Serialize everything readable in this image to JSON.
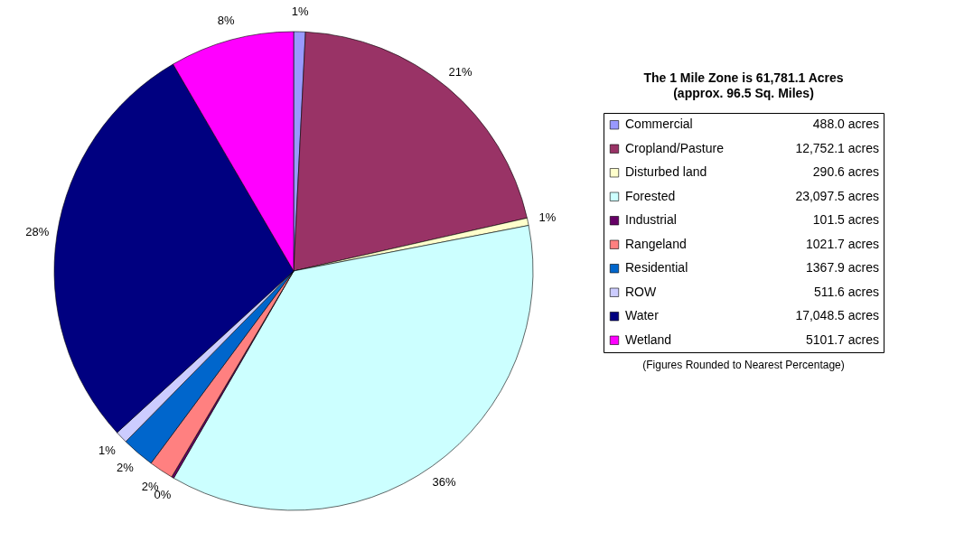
{
  "chart_data": {
    "type": "pie",
    "title": "The 1 Mile Zone is 61,781.1 Acres",
    "subtitle": "(approx. 96.5 Sq. Miles)",
    "categories": [
      "Commercial",
      "Cropland/Pasture",
      "Disturbed land",
      "Forested",
      "Industrial",
      "Rangeland",
      "Residential",
      "ROW",
      "Water",
      "Wetland"
    ],
    "values": [
      0.79,
      20.66,
      0.5,
      36.4,
      0.16,
      1.65,
      2.21,
      0.83,
      28.4,
      8.4
    ],
    "colors": [
      "#9999ff",
      "#993366",
      "#ffffcc",
      "#ccffff",
      "#660066",
      "#ff8080",
      "#0066cc",
      "#ccccff",
      "#000080",
      "#ff00ff"
    ],
    "value_labels": [
      "1%",
      "21%",
      "1%",
      "36%",
      "0%",
      "2%",
      "2%",
      "1%",
      "28%",
      "8%"
    ],
    "annotations": [
      "488.0 acres",
      "12,752.1 acres",
      "290.6 acres",
      "23,097.5 acres",
      "101.5 acres",
      "1021.7 acres",
      "1367.9 acres",
      "511.6 acres",
      "17,048.5 acres",
      "5101.7 acres",
      "(Figures Rounded to Nearest Percentage)"
    ],
    "legend": "right"
  }
}
